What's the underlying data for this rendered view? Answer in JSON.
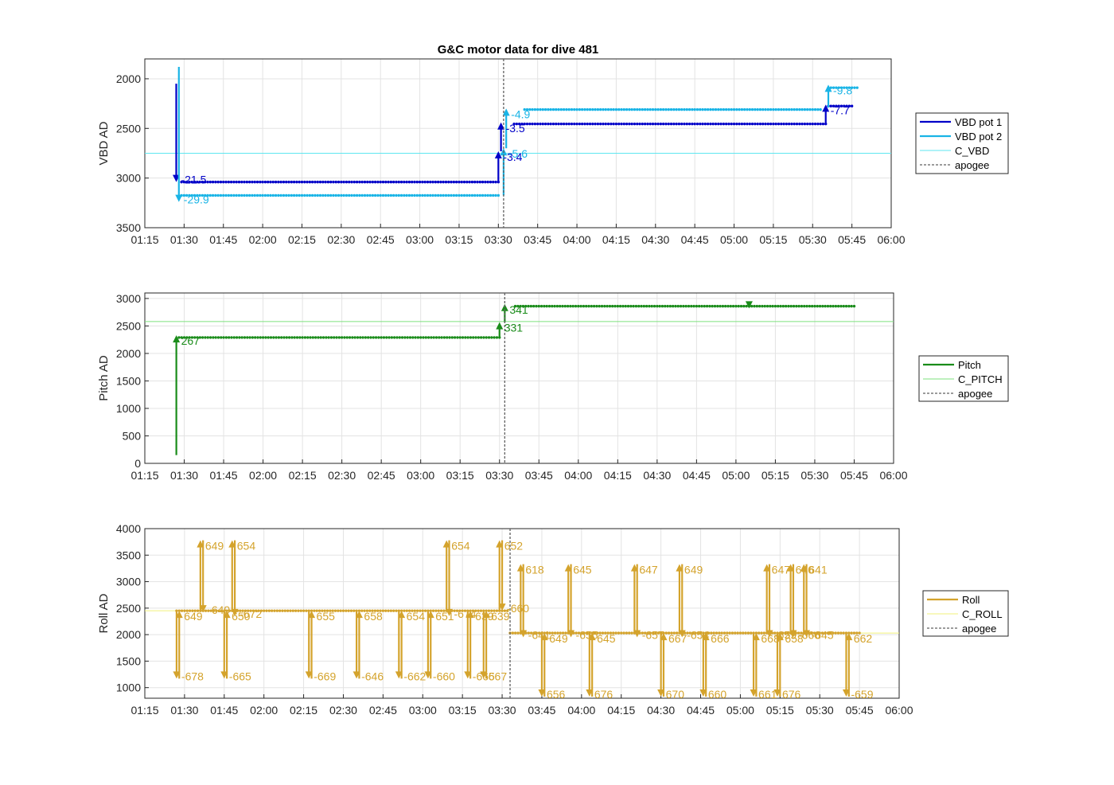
{
  "title": "G&C motor data for dive 481",
  "colors": {
    "vbd1": "#0000c8",
    "vbd2": "#19b4e6",
    "c_vbd": "#5ee6f0",
    "pitch": "#1a8c1a",
    "c_pitch": "#7ee07e",
    "roll": "#d4a32c",
    "c_roll": "#f2f27a",
    "apogee": "#606060",
    "grid": "#e3e3e3",
    "axis": "#262626"
  },
  "x_ticks": [
    "01:15",
    "01:30",
    "01:45",
    "02:00",
    "02:15",
    "02:30",
    "02:45",
    "03:00",
    "03:15",
    "03:30",
    "03:45",
    "04:00",
    "04:15",
    "04:30",
    "04:45",
    "05:00",
    "05:15",
    "05:30",
    "05:45",
    "06:00"
  ],
  "chart_data": [
    {
      "type": "line",
      "title": "G&C motor data for dive 481",
      "xlabel": "",
      "ylabel": "VBD AD",
      "xlim": [
        "01:15",
        "06:00"
      ],
      "ylim": [
        1800,
        3500
      ],
      "y_reversed": true,
      "y_ticks": [
        2000,
        2500,
        3000,
        3500
      ],
      "legend": [
        "VBD pot 1",
        "VBD pot 2",
        "C_VBD",
        "apogee"
      ],
      "legend_position": "outside-right",
      "grid": true,
      "apogee_time": "03:32",
      "reference": {
        "name": "C_VBD",
        "value": 2750
      },
      "series": [
        {
          "name": "VBD pot 1",
          "start": "01:29",
          "end": "03:30",
          "value": 3040
        },
        {
          "name": "VBD pot 1",
          "start": "03:36",
          "end": "05:35",
          "value": 2455
        },
        {
          "name": "VBD pot 1",
          "start": "05:36",
          "end": "05:45",
          "value": 2275
        },
        {
          "name": "VBD pot 2",
          "start": "01:29",
          "end": "03:30",
          "value": 3175
        },
        {
          "name": "VBD pot 2",
          "start": "03:40",
          "end": "05:33",
          "value": 2310
        },
        {
          "name": "VBD pot 2",
          "start": "05:36",
          "end": "05:47",
          "value": 2090
        }
      ],
      "arrows": [
        {
          "series": "VBD pot 1",
          "time": "01:27",
          "from": 2050,
          "to": 3040,
          "label": "-21.5"
        },
        {
          "series": "VBD pot 2",
          "time": "01:28",
          "from": 1880,
          "to": 3240,
          "label": "-29.9"
        },
        {
          "series": "VBD pot 1",
          "time": "03:30",
          "from": 3040,
          "to": 2730,
          "label": "-3.4"
        },
        {
          "series": "VBD pot 1",
          "time": "03:31",
          "from": 2730,
          "to": 2440,
          "label": "-3.5"
        },
        {
          "series": "VBD pot 2",
          "time": "03:32",
          "from": 3175,
          "to": 2700,
          "label": "-5.6"
        },
        {
          "series": "VBD pot 2",
          "time": "03:33",
          "from": 2700,
          "to": 2300,
          "label": "-4.9"
        },
        {
          "series": "VBD pot 1",
          "time": "05:35",
          "from": 2455,
          "to": 2260,
          "label": "-7.7"
        },
        {
          "series": "VBD pot 2",
          "time": "05:36",
          "from": 2290,
          "to": 2060,
          "label": "-9.8"
        }
      ]
    },
    {
      "type": "line",
      "xlabel": "",
      "ylabel": "Pitch AD",
      "xlim": [
        "01:15",
        "06:00"
      ],
      "ylim": [
        0,
        3100
      ],
      "y_ticks": [
        0,
        500,
        1000,
        1500,
        2000,
        2500,
        3000
      ],
      "legend": [
        "Pitch",
        "C_PITCH",
        "apogee"
      ],
      "legend_position": "outside-right",
      "grid": true,
      "apogee_time": "03:32",
      "reference": {
        "name": "C_PITCH",
        "value": 2580
      },
      "series": [
        {
          "name": "Pitch",
          "start": "01:28",
          "end": "03:30",
          "value": 2290
        },
        {
          "name": "Pitch",
          "start": "03:36",
          "end": "05:45",
          "value": 2860
        }
      ],
      "arrows": [
        {
          "series": "Pitch",
          "time": "01:27",
          "from": 150,
          "to": 2330,
          "label": "267"
        },
        {
          "series": "Pitch",
          "time": "03:30",
          "from": 2290,
          "to": 2570,
          "label": "331"
        },
        {
          "series": "Pitch",
          "time": "03:32",
          "from": 2570,
          "to": 2900,
          "label": "341"
        },
        {
          "series": "Pitch",
          "time": "05:05",
          "from": 2900,
          "to": 2820,
          "label": ""
        }
      ]
    },
    {
      "type": "line",
      "xlabel": "",
      "ylabel": "Roll AD",
      "xlim": [
        "01:15",
        "06:00"
      ],
      "ylim": [
        800,
        4000
      ],
      "y_ticks": [
        1000,
        1500,
        2000,
        2500,
        3000,
        3500,
        4000
      ],
      "legend": [
        "Roll",
        "C_ROLL",
        "apogee"
      ],
      "legend_position": "outside-right",
      "grid": true,
      "apogee_time": "03:33",
      "reference": {
        "name": "C_ROLL",
        "value": 2450,
        "end": "03:33",
        "value2": 2030
      },
      "series": [
        {
          "name": "Roll",
          "start": "01:27",
          "end": "03:32",
          "value": 2450
        },
        {
          "name": "Roll",
          "start": "03:33",
          "end": "05:45",
          "value": 2030
        }
      ],
      "arrows": [
        {
          "time": "01:27",
          "from": 2450,
          "to": 1170,
          "label": "-678"
        },
        {
          "time": "01:28",
          "from": 1170,
          "to": 2450,
          "label": "649"
        },
        {
          "time": "01:36",
          "from": 2450,
          "to": 3780,
          "label": "649"
        },
        {
          "time": "01:37",
          "from": 3780,
          "to": 2420,
          "label": "-649"
        },
        {
          "time": "01:45",
          "from": 2450,
          "to": 1170,
          "label": "-665"
        },
        {
          "time": "01:46",
          "from": 1170,
          "to": 2450,
          "label": "650"
        },
        {
          "time": "01:48",
          "from": 2450,
          "to": 3780,
          "label": "654"
        },
        {
          "time": "01:49",
          "from": 3780,
          "to": 2350,
          "label": "-672"
        },
        {
          "time": "02:17",
          "from": 2450,
          "to": 1170,
          "label": "-669"
        },
        {
          "time": "02:18",
          "from": 1170,
          "to": 2450,
          "label": "655"
        },
        {
          "time": "02:35",
          "from": 2450,
          "to": 1170,
          "label": "-646"
        },
        {
          "time": "02:36",
          "from": 1170,
          "to": 2450,
          "label": "658"
        },
        {
          "time": "02:51",
          "from": 2450,
          "to": 1170,
          "label": "-662"
        },
        {
          "time": "02:52",
          "from": 1170,
          "to": 2450,
          "label": "654"
        },
        {
          "time": "03:02",
          "from": 2450,
          "to": 1170,
          "label": "-660"
        },
        {
          "time": "03:03",
          "from": 1170,
          "to": 2450,
          "label": "651"
        },
        {
          "time": "03:09",
          "from": 2450,
          "to": 3780,
          "label": "654"
        },
        {
          "time": "03:10",
          "from": 3780,
          "to": 2350,
          "label": "-674"
        },
        {
          "time": "03:17",
          "from": 2450,
          "to": 1170,
          "label": "-665"
        },
        {
          "time": "03:18",
          "from": 1170,
          "to": 2450,
          "label": "639"
        },
        {
          "time": "03:23",
          "from": 2450,
          "to": 1170,
          "label": "667"
        },
        {
          "time": "03:24",
          "from": 1170,
          "to": 2450,
          "label": "639"
        },
        {
          "time": "03:29",
          "from": 2450,
          "to": 3780,
          "label": "652"
        },
        {
          "time": "03:30",
          "from": 3780,
          "to": 2450,
          "label": "-660"
        },
        {
          "time": "03:37",
          "from": 2030,
          "to": 3330,
          "label": "618"
        },
        {
          "time": "03:38",
          "from": 3330,
          "to": 1950,
          "label": "-641"
        },
        {
          "time": "03:45",
          "from": 2030,
          "to": 830,
          "label": "656"
        },
        {
          "time": "03:46",
          "from": 830,
          "to": 2030,
          "label": "649"
        },
        {
          "time": "03:55",
          "from": 2030,
          "to": 3330,
          "label": "645"
        },
        {
          "time": "03:56",
          "from": 3330,
          "to": 1950,
          "label": "-655"
        },
        {
          "time": "04:03",
          "from": 2030,
          "to": 830,
          "label": "676"
        },
        {
          "time": "04:04",
          "from": 830,
          "to": 2030,
          "label": "645"
        },
        {
          "time": "04:20",
          "from": 2030,
          "to": 3330,
          "label": "647"
        },
        {
          "time": "04:21",
          "from": 3330,
          "to": 1950,
          "label": "-657"
        },
        {
          "time": "04:30",
          "from": 2030,
          "to": 830,
          "label": "670"
        },
        {
          "time": "04:31",
          "from": 830,
          "to": 2030,
          "label": "667"
        },
        {
          "time": "04:37",
          "from": 2030,
          "to": 3330,
          "label": "649"
        },
        {
          "time": "04:38",
          "from": 3330,
          "to": 1950,
          "label": "-654"
        },
        {
          "time": "04:46",
          "from": 2030,
          "to": 830,
          "label": "660"
        },
        {
          "time": "04:47",
          "from": 830,
          "to": 2030,
          "label": "666"
        },
        {
          "time": "05:05",
          "from": 2030,
          "to": 830,
          "label": "661"
        },
        {
          "time": "05:06",
          "from": 830,
          "to": 2030,
          "label": "668"
        },
        {
          "time": "05:10",
          "from": 2030,
          "to": 3330,
          "label": "647"
        },
        {
          "time": "05:11",
          "from": 3330,
          "to": 1950,
          "label": "-659"
        },
        {
          "time": "05:14",
          "from": 2030,
          "to": 830,
          "label": "676"
        },
        {
          "time": "05:15",
          "from": 830,
          "to": 2030,
          "label": "658"
        },
        {
          "time": "05:19",
          "from": 2030,
          "to": 3330,
          "label": "646"
        },
        {
          "time": "05:20",
          "from": 3330,
          "to": 1950,
          "label": "-666"
        },
        {
          "time": "05:24",
          "from": 2030,
          "to": 3330,
          "label": "641"
        },
        {
          "time": "05:25",
          "from": 3330,
          "to": 1950,
          "label": "-645"
        },
        {
          "time": "05:40",
          "from": 2030,
          "to": 830,
          "label": "-659"
        },
        {
          "time": "05:41",
          "from": 830,
          "to": 2030,
          "label": "662"
        }
      ]
    }
  ]
}
